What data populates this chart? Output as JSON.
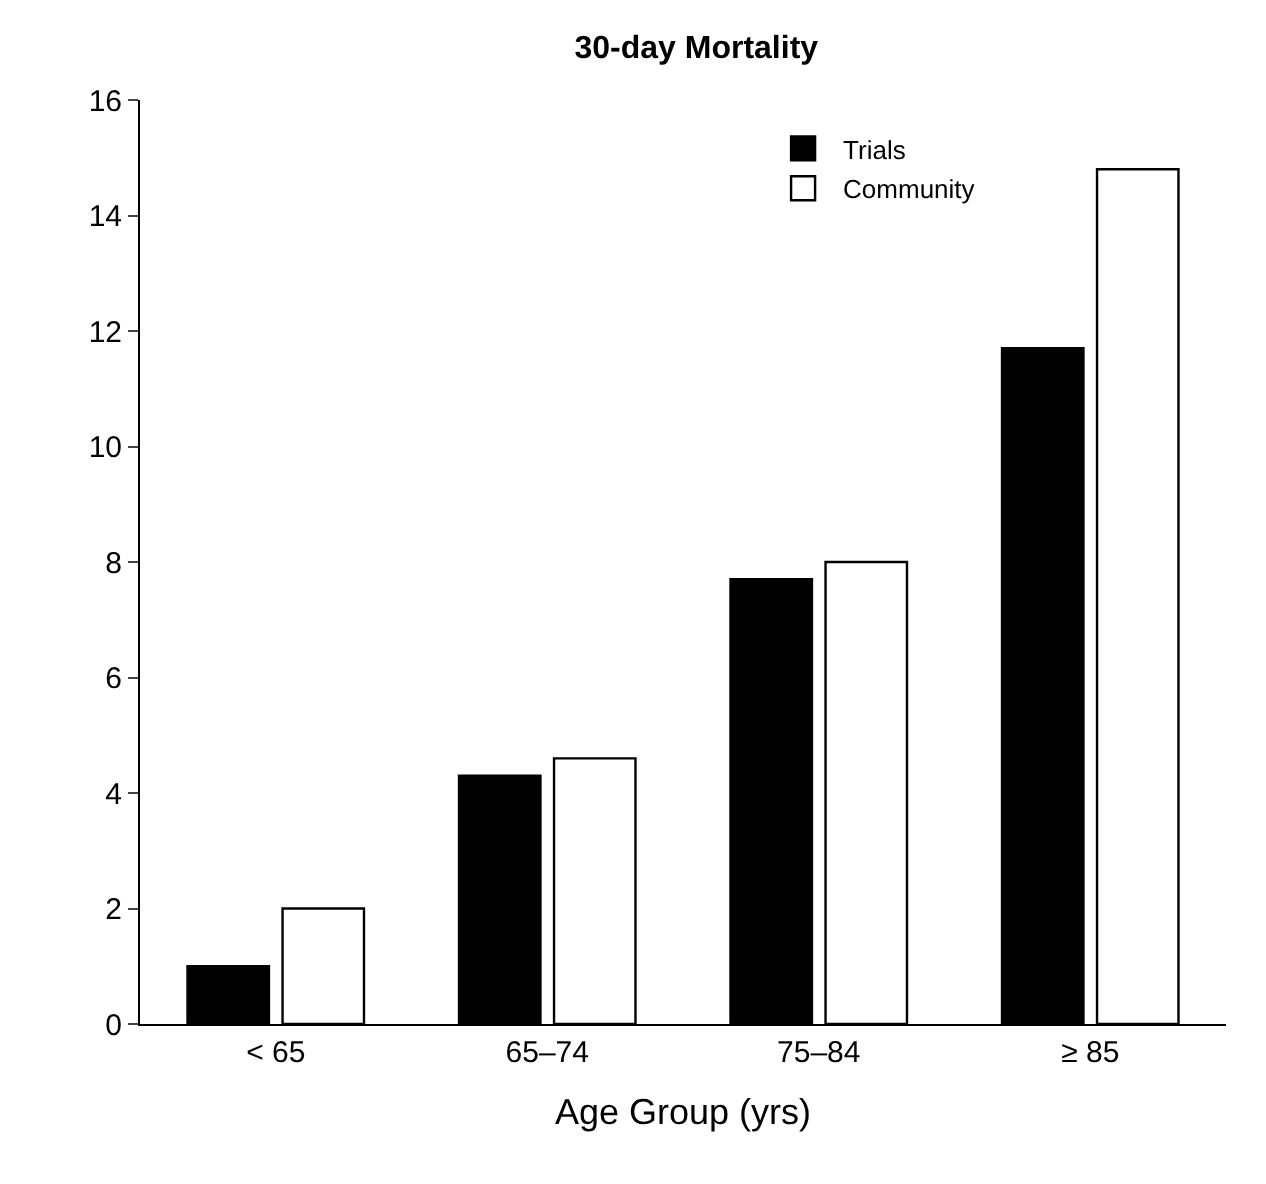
{
  "chart_data": {
    "type": "bar",
    "title": "30-day Mortality",
    "xlabel": "Age Group (yrs)",
    "categories": [
      "< 65",
      "65–74",
      "75–84",
      "≥ 85"
    ],
    "series": [
      {
        "name": "Trials",
        "color": "#000000",
        "values": [
          1.0,
          4.3,
          7.7,
          11.7
        ]
      },
      {
        "name": "Community",
        "color": "#ffffff",
        "values": [
          2.0,
          4.6,
          8.0,
          14.8
        ]
      }
    ],
    "ylim": [
      0,
      16
    ],
    "yticks": [
      0,
      2,
      4,
      6,
      8,
      10,
      12,
      14,
      16
    ],
    "legend": "top right"
  }
}
